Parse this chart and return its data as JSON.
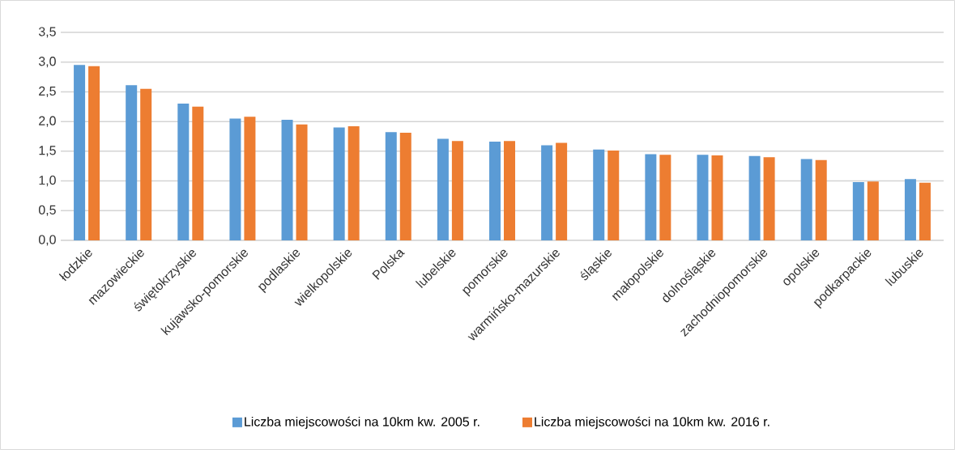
{
  "chart_data": {
    "type": "bar",
    "categories": [
      "łodzkie",
      "mazowieckie",
      "świętokrzyskie",
      "kujawsko-pomorskie",
      "podlaskie",
      "wielkopolskie",
      "Polska",
      "lubelskie",
      "pomorskie",
      "warmińsko-mazurskie",
      "śląskie",
      "małopolskie",
      "dolnośląskie",
      "zachodniopomorskie",
      "opolskie",
      "podkarpackie",
      "lubuskie"
    ],
    "series": [
      {
        "name": "Liczba miejscowości na 10km kw. 2005 r.",
        "color": "#5b9bd5",
        "values": [
          2.95,
          2.61,
          2.3,
          2.05,
          2.03,
          1.9,
          1.82,
          1.71,
          1.66,
          1.6,
          1.53,
          1.45,
          1.44,
          1.42,
          1.37,
          0.98,
          1.03
        ]
      },
      {
        "name": "Liczba miejscowości na 10km kw. 2016 r.",
        "color": "#ed7d31",
        "values": [
          2.93,
          2.55,
          2.25,
          2.08,
          1.95,
          1.92,
          1.81,
          1.67,
          1.67,
          1.64,
          1.51,
          1.44,
          1.43,
          1.4,
          1.35,
          0.99,
          0.97
        ]
      }
    ],
    "ylim": [
      0,
      3.5
    ],
    "yticks": [
      {
        "value": 0,
        "label": "0,0"
      },
      {
        "value": 0.5,
        "label": "0,5"
      },
      {
        "value": 1,
        "label": "1,0"
      },
      {
        "value": 1.5,
        "label": "1,5"
      },
      {
        "value": 2,
        "label": "2,0"
      },
      {
        "value": 2.5,
        "label": "2,5"
      },
      {
        "value": 3,
        "label": "3,0"
      },
      {
        "value": 3.5,
        "label": "3,5"
      }
    ],
    "grid": "y",
    "legend": "bottom"
  }
}
